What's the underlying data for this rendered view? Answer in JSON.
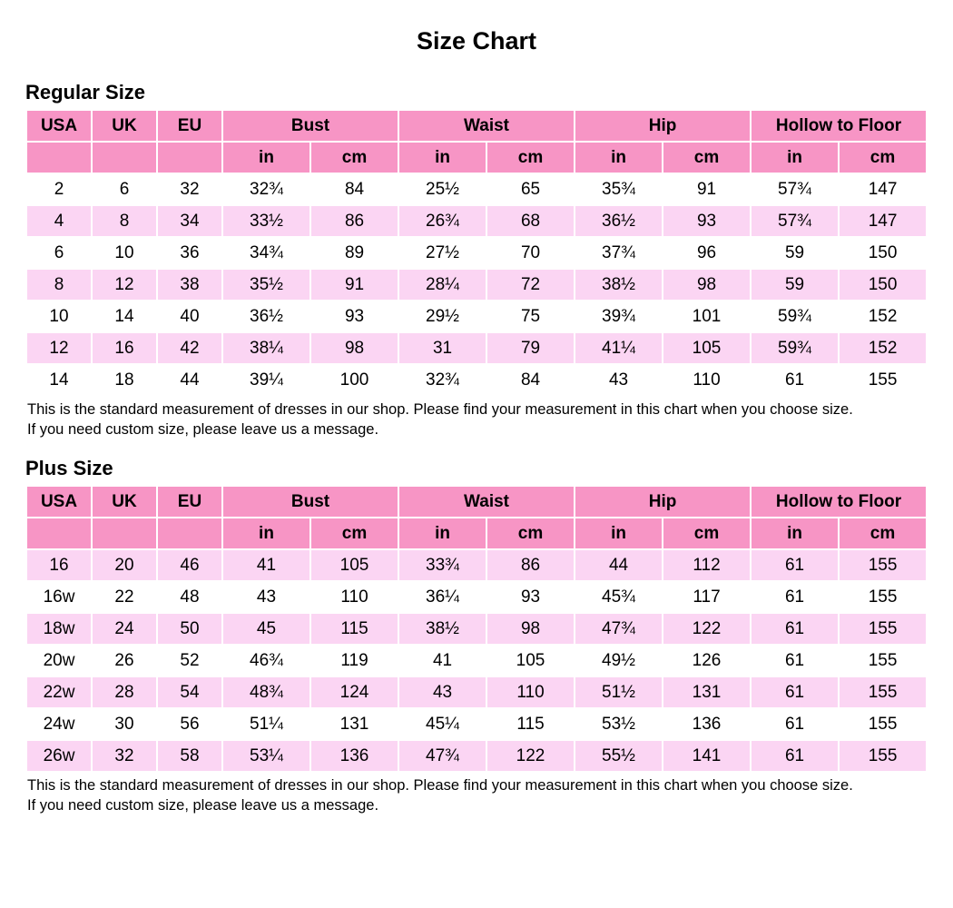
{
  "title": "Size Chart",
  "colors": {
    "header_pink": "#F795C5",
    "row_pink": "#FBD5F3",
    "row_white": "#FFFFFF",
    "text": "#000000",
    "background": "#FFFFFF"
  },
  "columns": {
    "simple": [
      "USA",
      "UK",
      "EU"
    ],
    "groups": [
      "Bust",
      "Waist",
      "Hip",
      "Hollow to Floor"
    ],
    "units": [
      "in",
      "cm"
    ]
  },
  "note": {
    "line1": "This is the standard measurement of dresses in our shop. Please find your measurement in this chart when you choose size.",
    "line2": "If you need custom size, please leave us a message."
  },
  "sections": {
    "regular": {
      "heading": "Regular Size",
      "first_row_shade": "white",
      "rows": [
        [
          "2",
          "6",
          "32",
          "32¾",
          "84",
          "25½",
          "65",
          "35¾",
          "91",
          "57¾",
          "147"
        ],
        [
          "4",
          "8",
          "34",
          "33½",
          "86",
          "26¾",
          "68",
          "36½",
          "93",
          "57¾",
          "147"
        ],
        [
          "6",
          "10",
          "36",
          "34¾",
          "89",
          "27½",
          "70",
          "37¾",
          "96",
          "59",
          "150"
        ],
        [
          "8",
          "12",
          "38",
          "35½",
          "91",
          "28¼",
          "72",
          "38½",
          "98",
          "59",
          "150"
        ],
        [
          "10",
          "14",
          "40",
          "36½",
          "93",
          "29½",
          "75",
          "39¾",
          "101",
          "59¾",
          "152"
        ],
        [
          "12",
          "16",
          "42",
          "38¼",
          "98",
          "31",
          "79",
          "41¼",
          "105",
          "59¾",
          "152"
        ],
        [
          "14",
          "18",
          "44",
          "39¼",
          "100",
          "32¾",
          "84",
          "43",
          "110",
          "61",
          "155"
        ]
      ]
    },
    "plus": {
      "heading": "Plus Size",
      "first_row_shade": "pink",
      "rows": [
        [
          "16",
          "20",
          "46",
          "41",
          "105",
          "33¾",
          "86",
          "44",
          "112",
          "61",
          "155"
        ],
        [
          "16w",
          "22",
          "48",
          "43",
          "110",
          "36¼",
          "93",
          "45¾",
          "117",
          "61",
          "155"
        ],
        [
          "18w",
          "24",
          "50",
          "45",
          "115",
          "38½",
          "98",
          "47¾",
          "122",
          "61",
          "155"
        ],
        [
          "20w",
          "26",
          "52",
          "46¾",
          "119",
          "41",
          "105",
          "49½",
          "126",
          "61",
          "155"
        ],
        [
          "22w",
          "28",
          "54",
          "48¾",
          "124",
          "43",
          "110",
          "51½",
          "131",
          "61",
          "155"
        ],
        [
          "24w",
          "30",
          "56",
          "51¼",
          "131",
          "45¼",
          "115",
          "53½",
          "136",
          "61",
          "155"
        ],
        [
          "26w",
          "32",
          "58",
          "53¼",
          "136",
          "47¾",
          "122",
          "55½",
          "141",
          "61",
          "155"
        ]
      ]
    }
  }
}
